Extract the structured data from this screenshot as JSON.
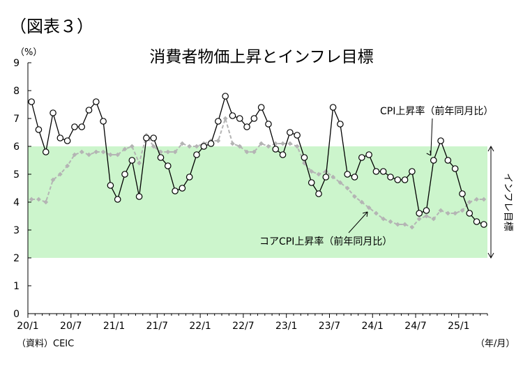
{
  "figure_label": "（図表３）",
  "chart_data": {
    "type": "line",
    "title": "消費者物価上昇とインフレ目標",
    "ylabel": "（%）",
    "xunit": "（年/月）",
    "source": "（資料）CEIC",
    "ylim": [
      0,
      9
    ],
    "yticks": [
      "0",
      "1",
      "2",
      "3",
      "4",
      "5",
      "6",
      "7",
      "8",
      "9"
    ],
    "xlim": [
      "2020-01",
      "2025-04"
    ],
    "xticks": [
      {
        "month": "2020-01",
        "label": "20/1"
      },
      {
        "month": "2020-07",
        "label": "20/7"
      },
      {
        "month": "2021-01",
        "label": "21/1"
      },
      {
        "month": "2021-07",
        "label": "21/7"
      },
      {
        "month": "2022-01",
        "label": "22/1"
      },
      {
        "month": "2022-07",
        "label": "22/7"
      },
      {
        "month": "2023-01",
        "label": "23/1"
      },
      {
        "month": "2023-07",
        "label": "23/7"
      },
      {
        "month": "2024-01",
        "label": "24/1"
      },
      {
        "month": "2024-07",
        "label": "24/7"
      },
      {
        "month": "2025-01",
        "label": "25/1"
      }
    ],
    "target_band": {
      "low": 2,
      "high": 6,
      "label": "インフレ目標",
      "color": "#ccf5cc"
    },
    "series": [
      {
        "name": "CPI上昇率（前年同月比）",
        "style": "solid",
        "marker": "open-circle",
        "color": "#000000",
        "start": "2020-01",
        "values": [
          7.6,
          6.6,
          5.8,
          7.2,
          6.3,
          6.2,
          6.7,
          6.7,
          7.3,
          7.6,
          6.9,
          4.6,
          4.1,
          5.0,
          5.5,
          4.2,
          6.3,
          6.3,
          5.6,
          5.3,
          4.4,
          4.5,
          4.9,
          5.7,
          6.0,
          6.1,
          6.9,
          7.8,
          7.1,
          7.0,
          6.7,
          7.0,
          7.4,
          6.8,
          5.9,
          5.7,
          6.5,
          6.4,
          5.6,
          4.7,
          4.3,
          4.9,
          7.4,
          6.8,
          5.0,
          4.9,
          5.6,
          5.7,
          5.1,
          5.1,
          4.9,
          4.8,
          4.8,
          5.1,
          3.6,
          3.7,
          5.5,
          6.2,
          5.5,
          5.2,
          4.3,
          3.6,
          3.3,
          3.2
        ]
      },
      {
        "name": "コアCPI上昇率（前年同月比）",
        "style": "dashed",
        "marker": "diamond",
        "color": "#b4b4b4",
        "start": "2020-01",
        "values": [
          4.1,
          4.1,
          4.0,
          4.8,
          5.0,
          5.3,
          5.7,
          5.8,
          5.7,
          5.8,
          5.8,
          5.7,
          5.7,
          5.9,
          6.0,
          5.4,
          6.4,
          6.0,
          5.8,
          5.8,
          5.8,
          6.1,
          6.0,
          6.0,
          6.1,
          6.2,
          6.2,
          7.0,
          6.1,
          6.0,
          5.8,
          5.8,
          6.1,
          6.0,
          6.1,
          6.1,
          6.1,
          6.0,
          5.4,
          5.1,
          5.0,
          5.1,
          4.9,
          4.7,
          4.5,
          4.2,
          4.0,
          3.8,
          3.6,
          3.4,
          3.3,
          3.2,
          3.2,
          3.1,
          3.4,
          3.5,
          3.4,
          3.7,
          3.6,
          3.6,
          3.7,
          4.0,
          4.1,
          4.1
        ]
      }
    ],
    "annotations": [
      {
        "text": "CPI上昇率（前年同月比）",
        "points_to": "2024-09"
      },
      {
        "text": "コアCPI上昇率（前年同月比）",
        "points_to": "2023-12"
      }
    ]
  }
}
